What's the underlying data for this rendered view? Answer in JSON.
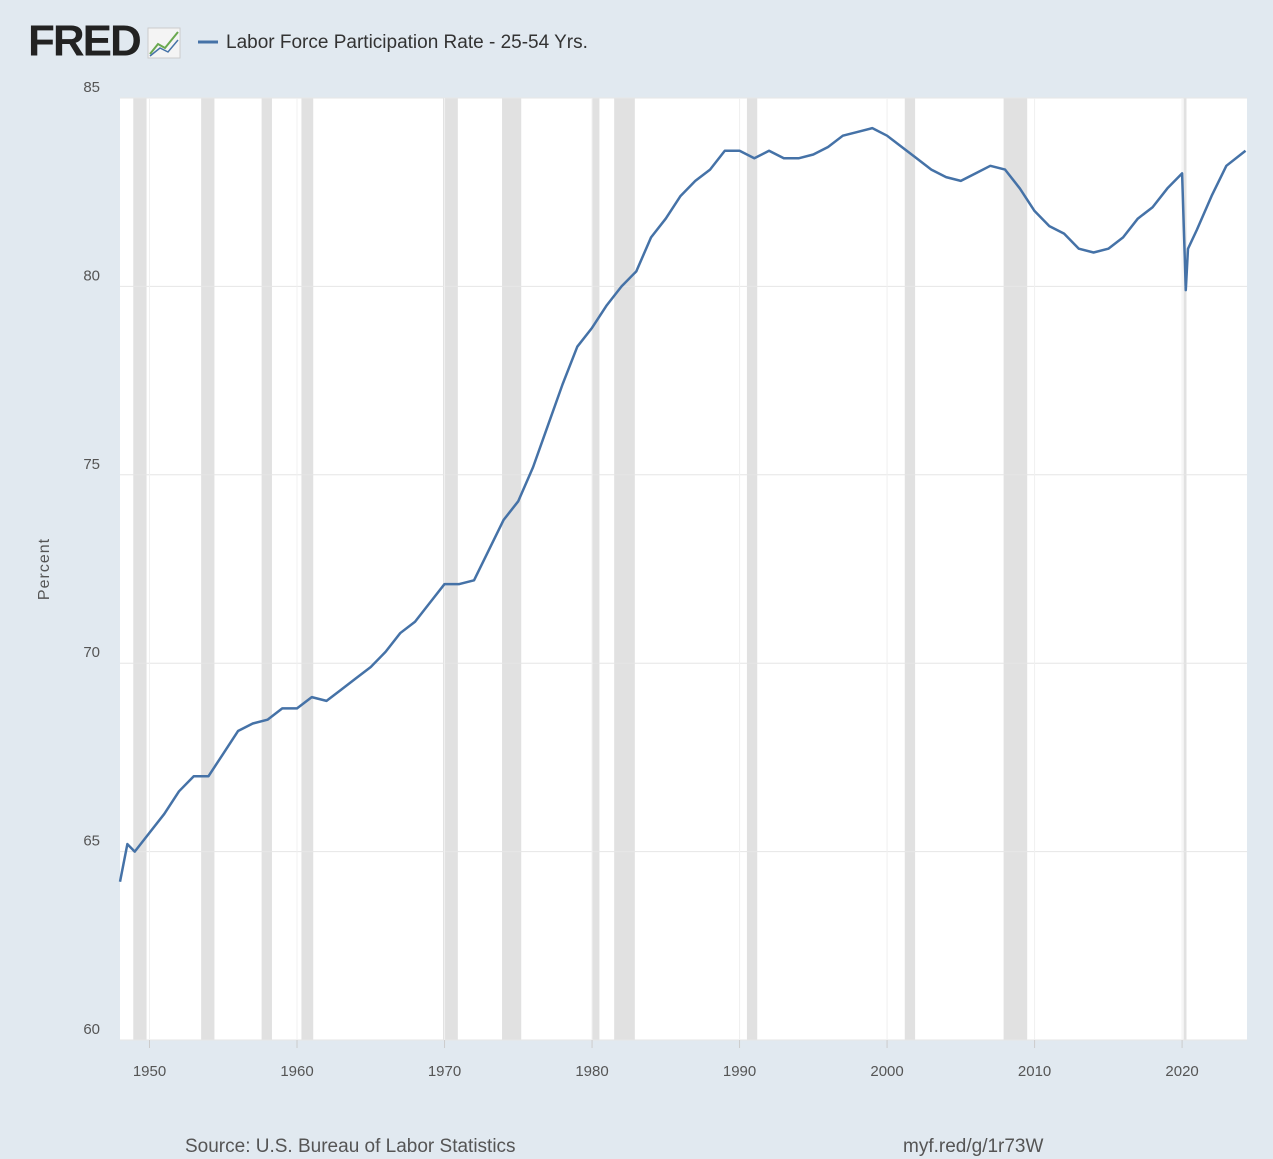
{
  "chart_data": {
    "type": "line",
    "logo": "FRED",
    "title": "Labor Force Participation Rate - 25-54 Yrs.",
    "y_label": "Percent",
    "source": "Source: U.S. Bureau of Labor Statistics",
    "link": "myf.red/g/1r73W",
    "x": [
      1948.0,
      1948.5,
      1949,
      1950,
      1951,
      1952,
      1953,
      1954,
      1955,
      1956,
      1957,
      1958,
      1959,
      1960,
      1961,
      1962,
      1963,
      1964,
      1965,
      1966,
      1967,
      1968,
      1969,
      1970,
      1971,
      1972,
      1973,
      1974,
      1975,
      1976,
      1977,
      1978,
      1979,
      1980,
      1981,
      1982,
      1983,
      1984,
      1985,
      1986,
      1987,
      1988,
      1989,
      1990,
      1991,
      1992,
      1993,
      1994,
      1995,
      1996,
      1997,
      1998,
      1999,
      2000,
      2001,
      2002,
      2003,
      2004,
      2005,
      2006,
      2007,
      2008,
      2009,
      2010,
      2011,
      2012,
      2013,
      2014,
      2015,
      2016,
      2017,
      2018,
      2019,
      2020.0,
      2020.25,
      2020.4,
      2021,
      2022,
      2023,
      2024.3
    ],
    "series": [
      {
        "name": "Labor Force Participation Rate - 25-54 Yrs.",
        "color": "#4572a7",
        "values": [
          64.2,
          65.2,
          65.0,
          65.5,
          66.0,
          66.6,
          67.0,
          67.0,
          67.6,
          68.2,
          68.4,
          68.5,
          68.8,
          68.8,
          69.1,
          69.0,
          69.3,
          69.6,
          69.9,
          70.3,
          70.8,
          71.1,
          71.6,
          72.1,
          72.1,
          72.2,
          73.0,
          73.8,
          74.3,
          75.2,
          76.3,
          77.4,
          78.4,
          78.9,
          79.5,
          80.0,
          80.4,
          81.3,
          81.8,
          82.4,
          82.8,
          83.1,
          83.6,
          83.6,
          83.4,
          83.6,
          83.4,
          83.4,
          83.5,
          83.7,
          84.0,
          84.1,
          84.2,
          84.0,
          83.7,
          83.4,
          83.1,
          82.9,
          82.8,
          83.0,
          83.2,
          83.1,
          82.6,
          82.0,
          81.6,
          81.4,
          81.0,
          80.9,
          81.0,
          81.3,
          81.8,
          82.1,
          82.6,
          83.0,
          79.9,
          81.0,
          81.5,
          82.4,
          83.2,
          83.6
        ]
      }
    ],
    "recessions": [
      [
        1948.9,
        1949.8
      ],
      [
        1953.5,
        1954.4
      ],
      [
        1957.6,
        1958.3
      ],
      [
        1960.3,
        1961.1
      ],
      [
        1969.9,
        1970.9
      ],
      [
        1973.9,
        1975.2
      ],
      [
        1980.0,
        1980.5
      ],
      [
        1981.5,
        1982.9
      ],
      [
        1990.5,
        1991.2
      ],
      [
        2001.2,
        2001.9
      ],
      [
        2007.9,
        2009.5
      ],
      [
        2020.1,
        2020.3
      ]
    ],
    "xlim": [
      1948,
      2024.4
    ],
    "xticks": [
      1950,
      1960,
      1970,
      1980,
      1990,
      2000,
      2010,
      2020
    ],
    "ylim": [
      60,
      85
    ],
    "yticks": [
      60,
      65,
      70,
      75,
      80,
      85
    ],
    "grid": true
  }
}
